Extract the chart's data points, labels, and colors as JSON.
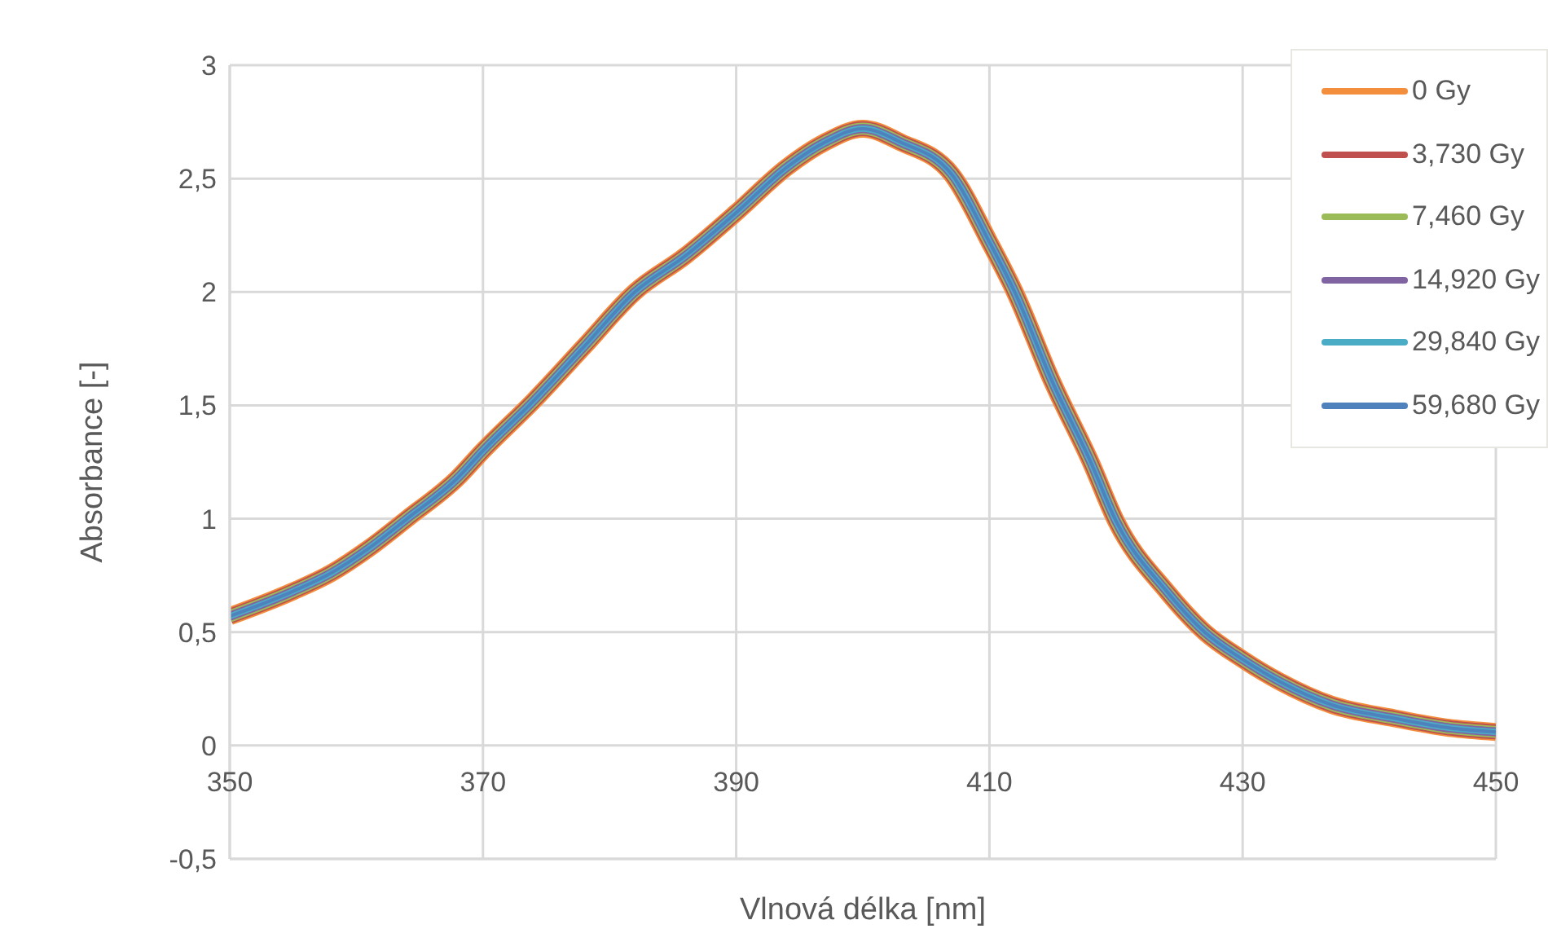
{
  "chart_data": {
    "type": "line",
    "xlabel": "Vlnová délka [nm]",
    "ylabel": "Absorbance [-]",
    "x": [
      350,
      355,
      358,
      361,
      364,
      368,
      370,
      374,
      378,
      382,
      386,
      390,
      394,
      397,
      400,
      403,
      407,
      410,
      412,
      415,
      418,
      420,
      424,
      427,
      430,
      433,
      437,
      442,
      446,
      450
    ],
    "series": [
      {
        "name": "0 Gy",
        "color": "#f28e3c",
        "values": [
          0.57,
          0.68,
          0.76,
          0.87,
          1.0,
          1.18,
          1.3,
          1.52,
          1.76,
          2.0,
          2.16,
          2.35,
          2.55,
          2.66,
          2.72,
          2.66,
          2.52,
          2.22,
          2.0,
          1.6,
          1.25,
          0.99,
          0.68,
          0.5,
          0.38,
          0.28,
          0.18,
          0.12,
          0.08,
          0.06
        ]
      },
      {
        "name": "3,730 Gy",
        "color": "#c0504d",
        "values": [
          0.57,
          0.68,
          0.76,
          0.87,
          1.0,
          1.18,
          1.3,
          1.52,
          1.76,
          2.0,
          2.16,
          2.35,
          2.55,
          2.66,
          2.72,
          2.66,
          2.52,
          2.22,
          2.0,
          1.6,
          1.25,
          0.99,
          0.68,
          0.5,
          0.38,
          0.28,
          0.18,
          0.12,
          0.08,
          0.06
        ]
      },
      {
        "name": "7,460 Gy",
        "color": "#9bbb59",
        "values": [
          0.57,
          0.68,
          0.76,
          0.87,
          1.0,
          1.18,
          1.3,
          1.52,
          1.76,
          2.0,
          2.16,
          2.35,
          2.55,
          2.66,
          2.72,
          2.66,
          2.52,
          2.22,
          2.0,
          1.6,
          1.25,
          0.99,
          0.68,
          0.5,
          0.38,
          0.28,
          0.18,
          0.12,
          0.08,
          0.06
        ]
      },
      {
        "name": "14,920 Gy",
        "color": "#8064a2",
        "values": [
          0.57,
          0.68,
          0.76,
          0.87,
          1.0,
          1.18,
          1.3,
          1.52,
          1.76,
          2.0,
          2.16,
          2.35,
          2.55,
          2.66,
          2.72,
          2.66,
          2.52,
          2.22,
          2.0,
          1.6,
          1.25,
          0.99,
          0.68,
          0.5,
          0.38,
          0.28,
          0.18,
          0.12,
          0.08,
          0.06
        ]
      },
      {
        "name": "29,840 Gy",
        "color": "#4bacc6",
        "values": [
          0.57,
          0.68,
          0.76,
          0.87,
          1.0,
          1.18,
          1.3,
          1.52,
          1.76,
          2.0,
          2.16,
          2.35,
          2.55,
          2.66,
          2.72,
          2.66,
          2.52,
          2.22,
          2.0,
          1.6,
          1.25,
          0.99,
          0.68,
          0.5,
          0.38,
          0.28,
          0.18,
          0.12,
          0.08,
          0.06
        ]
      },
      {
        "name": "59,680 Gy",
        "color": "#4f81bd",
        "values": [
          0.57,
          0.68,
          0.76,
          0.87,
          1.0,
          1.18,
          1.3,
          1.52,
          1.76,
          2.0,
          2.16,
          2.35,
          2.55,
          2.66,
          2.72,
          2.66,
          2.52,
          2.22,
          2.0,
          1.6,
          1.25,
          0.99,
          0.68,
          0.5,
          0.38,
          0.28,
          0.18,
          0.12,
          0.08,
          0.06
        ]
      }
    ],
    "xlim": [
      350,
      450
    ],
    "xticks": [
      350,
      370,
      390,
      410,
      430,
      450
    ],
    "ylim": [
      -0.5,
      3
    ],
    "yticks": [
      {
        "value": -0.5,
        "label": "-0,5"
      },
      0,
      {
        "value": 0.5,
        "label": "0,5"
      },
      1,
      {
        "value": 1.5,
        "label": "1,5"
      },
      2,
      {
        "value": 2.5,
        "label": "2,5"
      },
      3
    ],
    "grid": true,
    "legend": "top right",
    "marker": "none",
    "line_style": "solid"
  }
}
